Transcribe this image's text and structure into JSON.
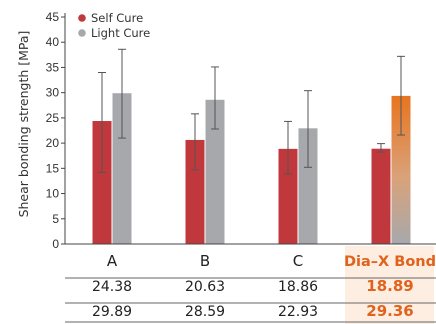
{
  "chart_data": {
    "type": "bar",
    "ylabel": "Shear bonding strength [MPa]",
    "ylim": [
      0,
      45
    ],
    "yticks": [
      0,
      5,
      10,
      15,
      20,
      25,
      30,
      35,
      40,
      45
    ],
    "categories": [
      "A",
      "B",
      "C",
      "Dia–X Bond"
    ],
    "highlight_category": "Dia–X Bond",
    "legend_position": "top-left",
    "series": [
      {
        "name": "Self Cure",
        "values": [
          24.38,
          20.63,
          18.86,
          18.89
        ],
        "value_labels": [
          "24.38",
          "20.63",
          "18.86",
          "18.89"
        ],
        "error_low": [
          14.2,
          14.7,
          13.9,
          18.2
        ],
        "error_high": [
          34.0,
          25.8,
          24.3,
          19.9
        ],
        "color": "#c1383c"
      },
      {
        "name": "Light Cure",
        "values": [
          29.89,
          28.59,
          22.93,
          29.36
        ],
        "value_labels": [
          "29.89",
          "28.59",
          "22.93",
          "29.36"
        ],
        "error_low": [
          21.0,
          22.8,
          15.2,
          21.6
        ],
        "error_high": [
          38.6,
          35.1,
          30.4,
          37.2
        ],
        "color": "#a7a8ac",
        "highlight_color": "#e8741f"
      }
    ],
    "highlight_bg": "#fdeee1",
    "highlight_text_color": "#e0621c"
  }
}
